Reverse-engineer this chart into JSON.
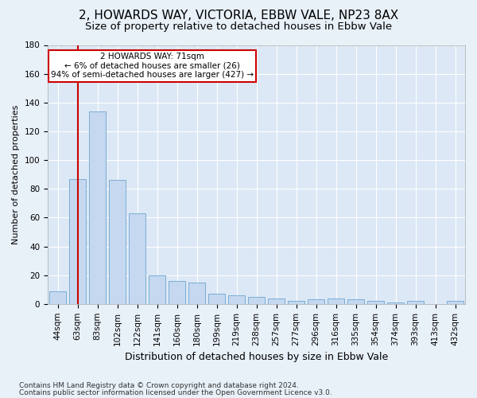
{
  "title1": "2, HOWARDS WAY, VICTORIA, EBBW VALE, NP23 8AX",
  "title2": "Size of property relative to detached houses in Ebbw Vale",
  "xlabel": "Distribution of detached houses by size in Ebbw Vale",
  "ylabel": "Number of detached properties",
  "categories": [
    "44sqm",
    "63sqm",
    "83sqm",
    "102sqm",
    "122sqm",
    "141sqm",
    "160sqm",
    "180sqm",
    "199sqm",
    "219sqm",
    "238sqm",
    "257sqm",
    "277sqm",
    "296sqm",
    "316sqm",
    "335sqm",
    "354sqm",
    "374sqm",
    "393sqm",
    "413sqm",
    "432sqm"
  ],
  "values": [
    9,
    87,
    134,
    86,
    63,
    20,
    16,
    15,
    7,
    6,
    5,
    4,
    2,
    3,
    4,
    3,
    2,
    1,
    2,
    0,
    2
  ],
  "bar_color": "#c5d8f0",
  "bar_edge_color": "#7aadd4",
  "ylim": [
    0,
    180
  ],
  "yticks": [
    0,
    20,
    40,
    60,
    80,
    100,
    120,
    140,
    160,
    180
  ],
  "property_line_x": 1,
  "property_line_color": "#cc0000",
  "annotation_line1": "2 HOWARDS WAY: 71sqm",
  "annotation_line2": "← 6% of detached houses are smaller (26)",
  "annotation_line3": "94% of semi-detached houses are larger (427) →",
  "annotation_box_color": "#cc0000",
  "footnote1": "Contains HM Land Registry data © Crown copyright and database right 2024.",
  "footnote2": "Contains public sector information licensed under the Open Government Licence v3.0.",
  "background_color": "#e8f0f8",
  "plot_background": "#dce8f5",
  "grid_color": "#ffffff",
  "title1_fontsize": 11,
  "title2_fontsize": 9.5,
  "xlabel_fontsize": 9,
  "ylabel_fontsize": 8,
  "tick_fontsize": 7.5,
  "footnote_fontsize": 6.5,
  "annotation_fontsize": 7.5
}
